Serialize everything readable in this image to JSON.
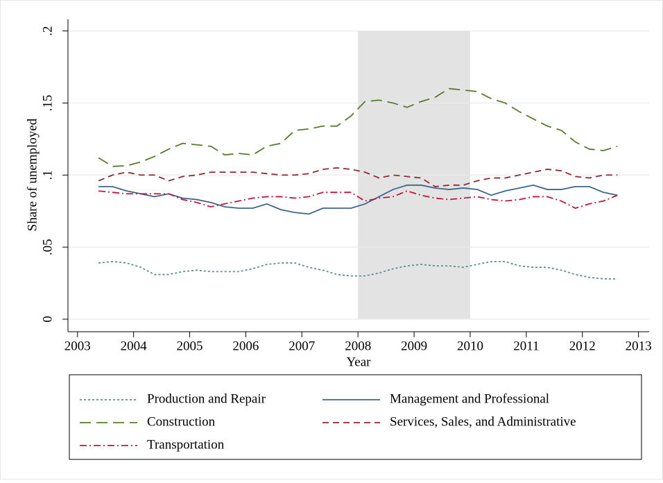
{
  "chart_data": {
    "type": "line",
    "x_label": "Year",
    "y_label": "Share of unemployed",
    "shade": [
      2008,
      2010
    ],
    "xlim": [
      2002.83,
      2013.19
    ],
    "ylim": [
      -0.0087,
      0.208
    ],
    "xticks": [
      2003,
      2004,
      2005,
      2006,
      2007,
      2008,
      2009,
      2010,
      2011,
      2012,
      2013
    ],
    "yticks": [
      0,
      {
        "value": 0.05,
        "label": ".05"
      },
      {
        "value": 0.1,
        "label": ".1"
      },
      {
        "value": 0.15,
        "label": ".15"
      },
      {
        "value": 0.2,
        "label": ".2"
      }
    ],
    "grid": true,
    "x": [
      2003.375,
      2003.625,
      2003.875,
      2004.125,
      2004.375,
      2004.625,
      2004.875,
      2005.125,
      2005.375,
      2005.625,
      2005.875,
      2006.125,
      2006.375,
      2006.625,
      2006.875,
      2007.125,
      2007.375,
      2007.625,
      2007.875,
      2008.125,
      2008.375,
      2008.625,
      2008.875,
      2009.125,
      2009.375,
      2009.625,
      2009.875,
      2010.125,
      2010.375,
      2010.625,
      2010.875,
      2011.125,
      2011.375,
      2011.625,
      2011.875,
      2012.125,
      2012.375,
      2012.625
    ],
    "series": [
      {
        "name": "Production and Repair",
        "color": "#5f8f8b",
        "dash": "3 3",
        "values": [
          0.039,
          0.04,
          0.039,
          0.036,
          0.031,
          0.031,
          0.033,
          0.034,
          0.033,
          0.033,
          0.033,
          0.035,
          0.038,
          0.039,
          0.039,
          0.036,
          0.034,
          0.031,
          0.03,
          0.03,
          0.032,
          0.035,
          0.037,
          0.038,
          0.037,
          0.037,
          0.036,
          0.038,
          0.04,
          0.04,
          0.037,
          0.036,
          0.036,
          0.034,
          0.031,
          0.029,
          0.028,
          0.028
        ]
      },
      {
        "name": "Management and Professional",
        "color": "#40658a",
        "dash": "",
        "values": [
          0.092,
          0.092,
          0.089,
          0.087,
          0.085,
          0.087,
          0.084,
          0.083,
          0.081,
          0.078,
          0.077,
          0.077,
          0.08,
          0.076,
          0.074,
          0.073,
          0.077,
          0.077,
          0.077,
          0.08,
          0.085,
          0.09,
          0.093,
          0.093,
          0.091,
          0.09,
          0.091,
          0.09,
          0.086,
          0.089,
          0.091,
          0.093,
          0.09,
          0.09,
          0.092,
          0.092,
          0.088,
          0.086
        ]
      },
      {
        "name": "Construction",
        "color": "#587a2e",
        "dash": "16 8",
        "values": [
          0.112,
          0.106,
          0.1065,
          0.109,
          0.113,
          0.118,
          0.122,
          0.121,
          0.12,
          0.114,
          0.115,
          0.114,
          0.12,
          0.122,
          0.131,
          0.132,
          0.134,
          0.134,
          0.141,
          0.151,
          0.152,
          0.15,
          0.147,
          0.151,
          0.154,
          0.16,
          0.159,
          0.158,
          0.153,
          0.15,
          0.144,
          0.139,
          0.134,
          0.131,
          0.123,
          0.118,
          0.117,
          0.12
        ]
      },
      {
        "name": "Services, Sales, and Administrative",
        "color": "#8e2a36",
        "dash": "9 6",
        "values": [
          0.096,
          0.1,
          0.102,
          0.1,
          0.1,
          0.096,
          0.099,
          0.1,
          0.102,
          0.102,
          0.102,
          0.102,
          0.101,
          0.1,
          0.1,
          0.101,
          0.104,
          0.105,
          0.104,
          0.102,
          0.098,
          0.1,
          0.099,
          0.098,
          0.092,
          0.093,
          0.093,
          0.096,
          0.098,
          0.098,
          0.1,
          0.102,
          0.104,
          0.103,
          0.099,
          0.098,
          0.1,
          0.1
        ]
      },
      {
        "name": "Transportation",
        "color": "#c0163c",
        "dash": "10 4 2 4",
        "values": [
          0.089,
          0.088,
          0.087,
          0.087,
          0.087,
          0.087,
          0.083,
          0.081,
          0.078,
          0.08,
          0.082,
          0.084,
          0.085,
          0.085,
          0.084,
          0.085,
          0.088,
          0.088,
          0.088,
          0.082,
          0.084,
          0.085,
          0.089,
          0.086,
          0.084,
          0.083,
          0.084,
          0.085,
          0.083,
          0.082,
          0.083,
          0.085,
          0.085,
          0.082,
          0.077,
          0.08,
          0.082,
          0.086
        ]
      }
    ]
  }
}
